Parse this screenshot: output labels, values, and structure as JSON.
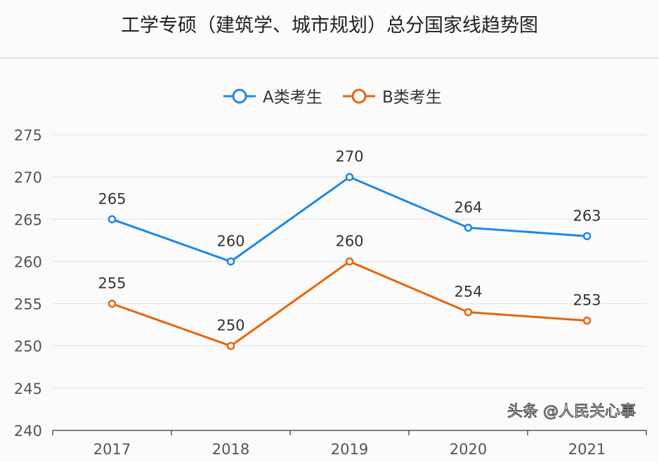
{
  "chart_data": {
    "type": "line",
    "title": "工学专硕（建筑学、城市规划）总分国家线趋势图",
    "categories": [
      "2017",
      "2018",
      "2019",
      "2020",
      "2021"
    ],
    "series": [
      {
        "name": "A类考生",
        "values": [
          265,
          260,
          270,
          264,
          263
        ],
        "color": "#1e88e5"
      },
      {
        "name": "B类考生",
        "values": [
          255,
          250,
          260,
          254,
          253
        ],
        "color": "#e8650a"
      }
    ],
    "ylim": [
      240,
      275
    ],
    "yticks": [
      240,
      245,
      250,
      255,
      260,
      265,
      270,
      275
    ],
    "grid": true,
    "legend": "top-center",
    "xlabel": "",
    "ylabel": ""
  },
  "watermark": "头条 @人民关心事"
}
